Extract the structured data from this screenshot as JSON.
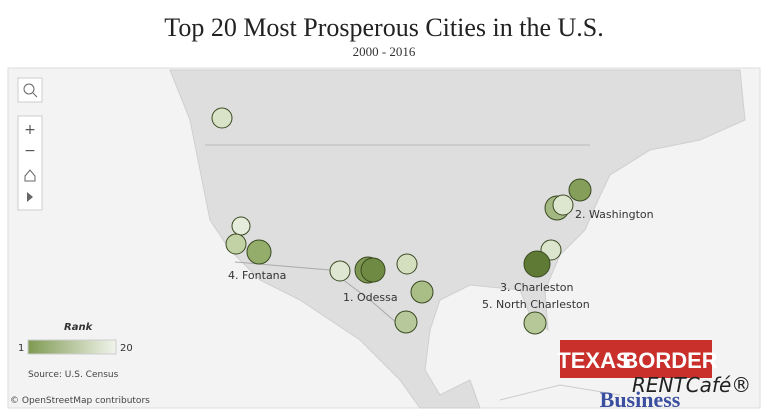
{
  "header": {
    "title": "Top 20 Most Prosperous Cities in the U.S.",
    "subtitle": "2000 - 2016"
  },
  "map": {
    "labels": [
      "1. Odessa",
      "2. Washington",
      "3. Charleston",
      "4. Fontana",
      "5. North Charleston"
    ],
    "legend": {
      "title": "Rank",
      "min": "1",
      "max": "20"
    },
    "source": "Source: U.S. Census",
    "attribution": "© OpenStreetMap contributors"
  },
  "logos": {
    "texas": "TEXAS",
    "border": "BORDER",
    "business": "Business",
    "rentcafe": "RENTCafé®"
  }
}
